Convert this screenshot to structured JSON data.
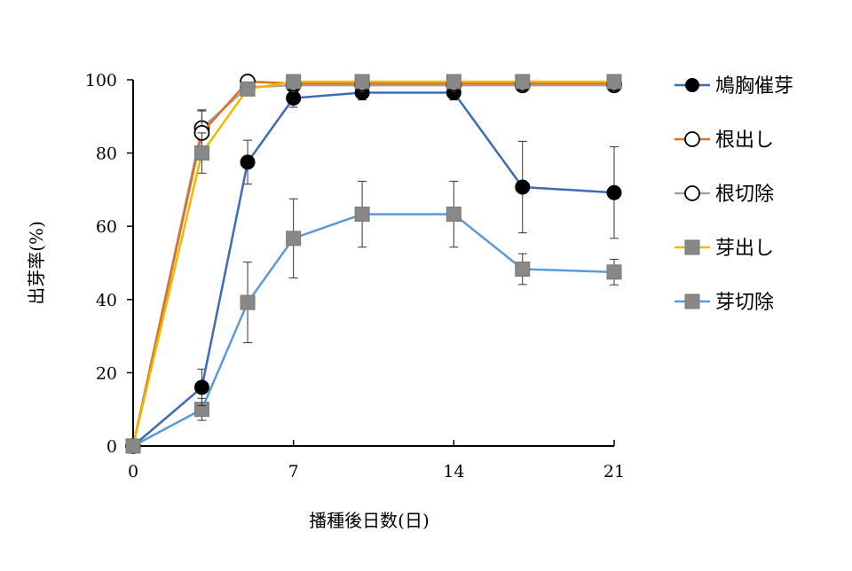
{
  "chart_data": {
    "type": "line",
    "xlabel": "播種後日数(日)",
    "ylabel": "出芽率(%)",
    "xlim": [
      0,
      21
    ],
    "ylim": [
      0,
      100
    ],
    "xticks": [
      0,
      7,
      14,
      21
    ],
    "yticks": [
      0,
      20,
      40,
      60,
      80,
      100
    ],
    "grid": false,
    "legend_position": "right",
    "x": [
      0,
      3,
      5,
      7,
      10,
      14,
      17,
      21
    ],
    "series": [
      {
        "name": "鳩胸催芽",
        "color": "#3f6bb3",
        "marker": "filled-circle",
        "marker_color": "#000000",
        "values": [
          0,
          16,
          77.5,
          95,
          96.5,
          96.5,
          70.7,
          69.2
        ],
        "errors": [
          0,
          5,
          6,
          2.5,
          2,
          2,
          12.5,
          12.5
        ]
      },
      {
        "name": "根出し",
        "color": "#e07020",
        "marker": "open-circle",
        "marker_color": "#000000",
        "values": [
          0,
          85.5,
          99.5,
          99,
          99,
          99,
          99,
          99
        ],
        "errors": [
          0,
          6,
          0,
          0,
          0,
          0,
          0,
          0
        ]
      },
      {
        "name": "根切除",
        "color": "#a5a5a5",
        "marker": "open-circle",
        "marker_color": "#000000",
        "values": [
          0,
          86.8,
          98,
          98.5,
          98.5,
          98.5,
          98.5,
          98.5
        ],
        "errors": [
          0,
          5,
          0,
          0,
          0,
          0,
          0,
          0
        ]
      },
      {
        "name": "芽出し",
        "color": "#f2b800",
        "marker": "filled-square",
        "marker_color": "#888888",
        "values": [
          0,
          80,
          97.5,
          99.5,
          99.5,
          99.5,
          99.5,
          99.5
        ],
        "errors": [
          0,
          5.5,
          0,
          0,
          0,
          0,
          0,
          0
        ]
      },
      {
        "name": "芽切除",
        "color": "#5b9bd5",
        "marker": "filled-square",
        "marker_color": "#888888",
        "values": [
          0,
          10,
          39.2,
          56.7,
          63.3,
          63.3,
          48.3,
          47.5
        ],
        "errors": [
          0,
          3,
          11,
          10.8,
          9,
          9,
          4.2,
          3.5
        ]
      }
    ]
  }
}
